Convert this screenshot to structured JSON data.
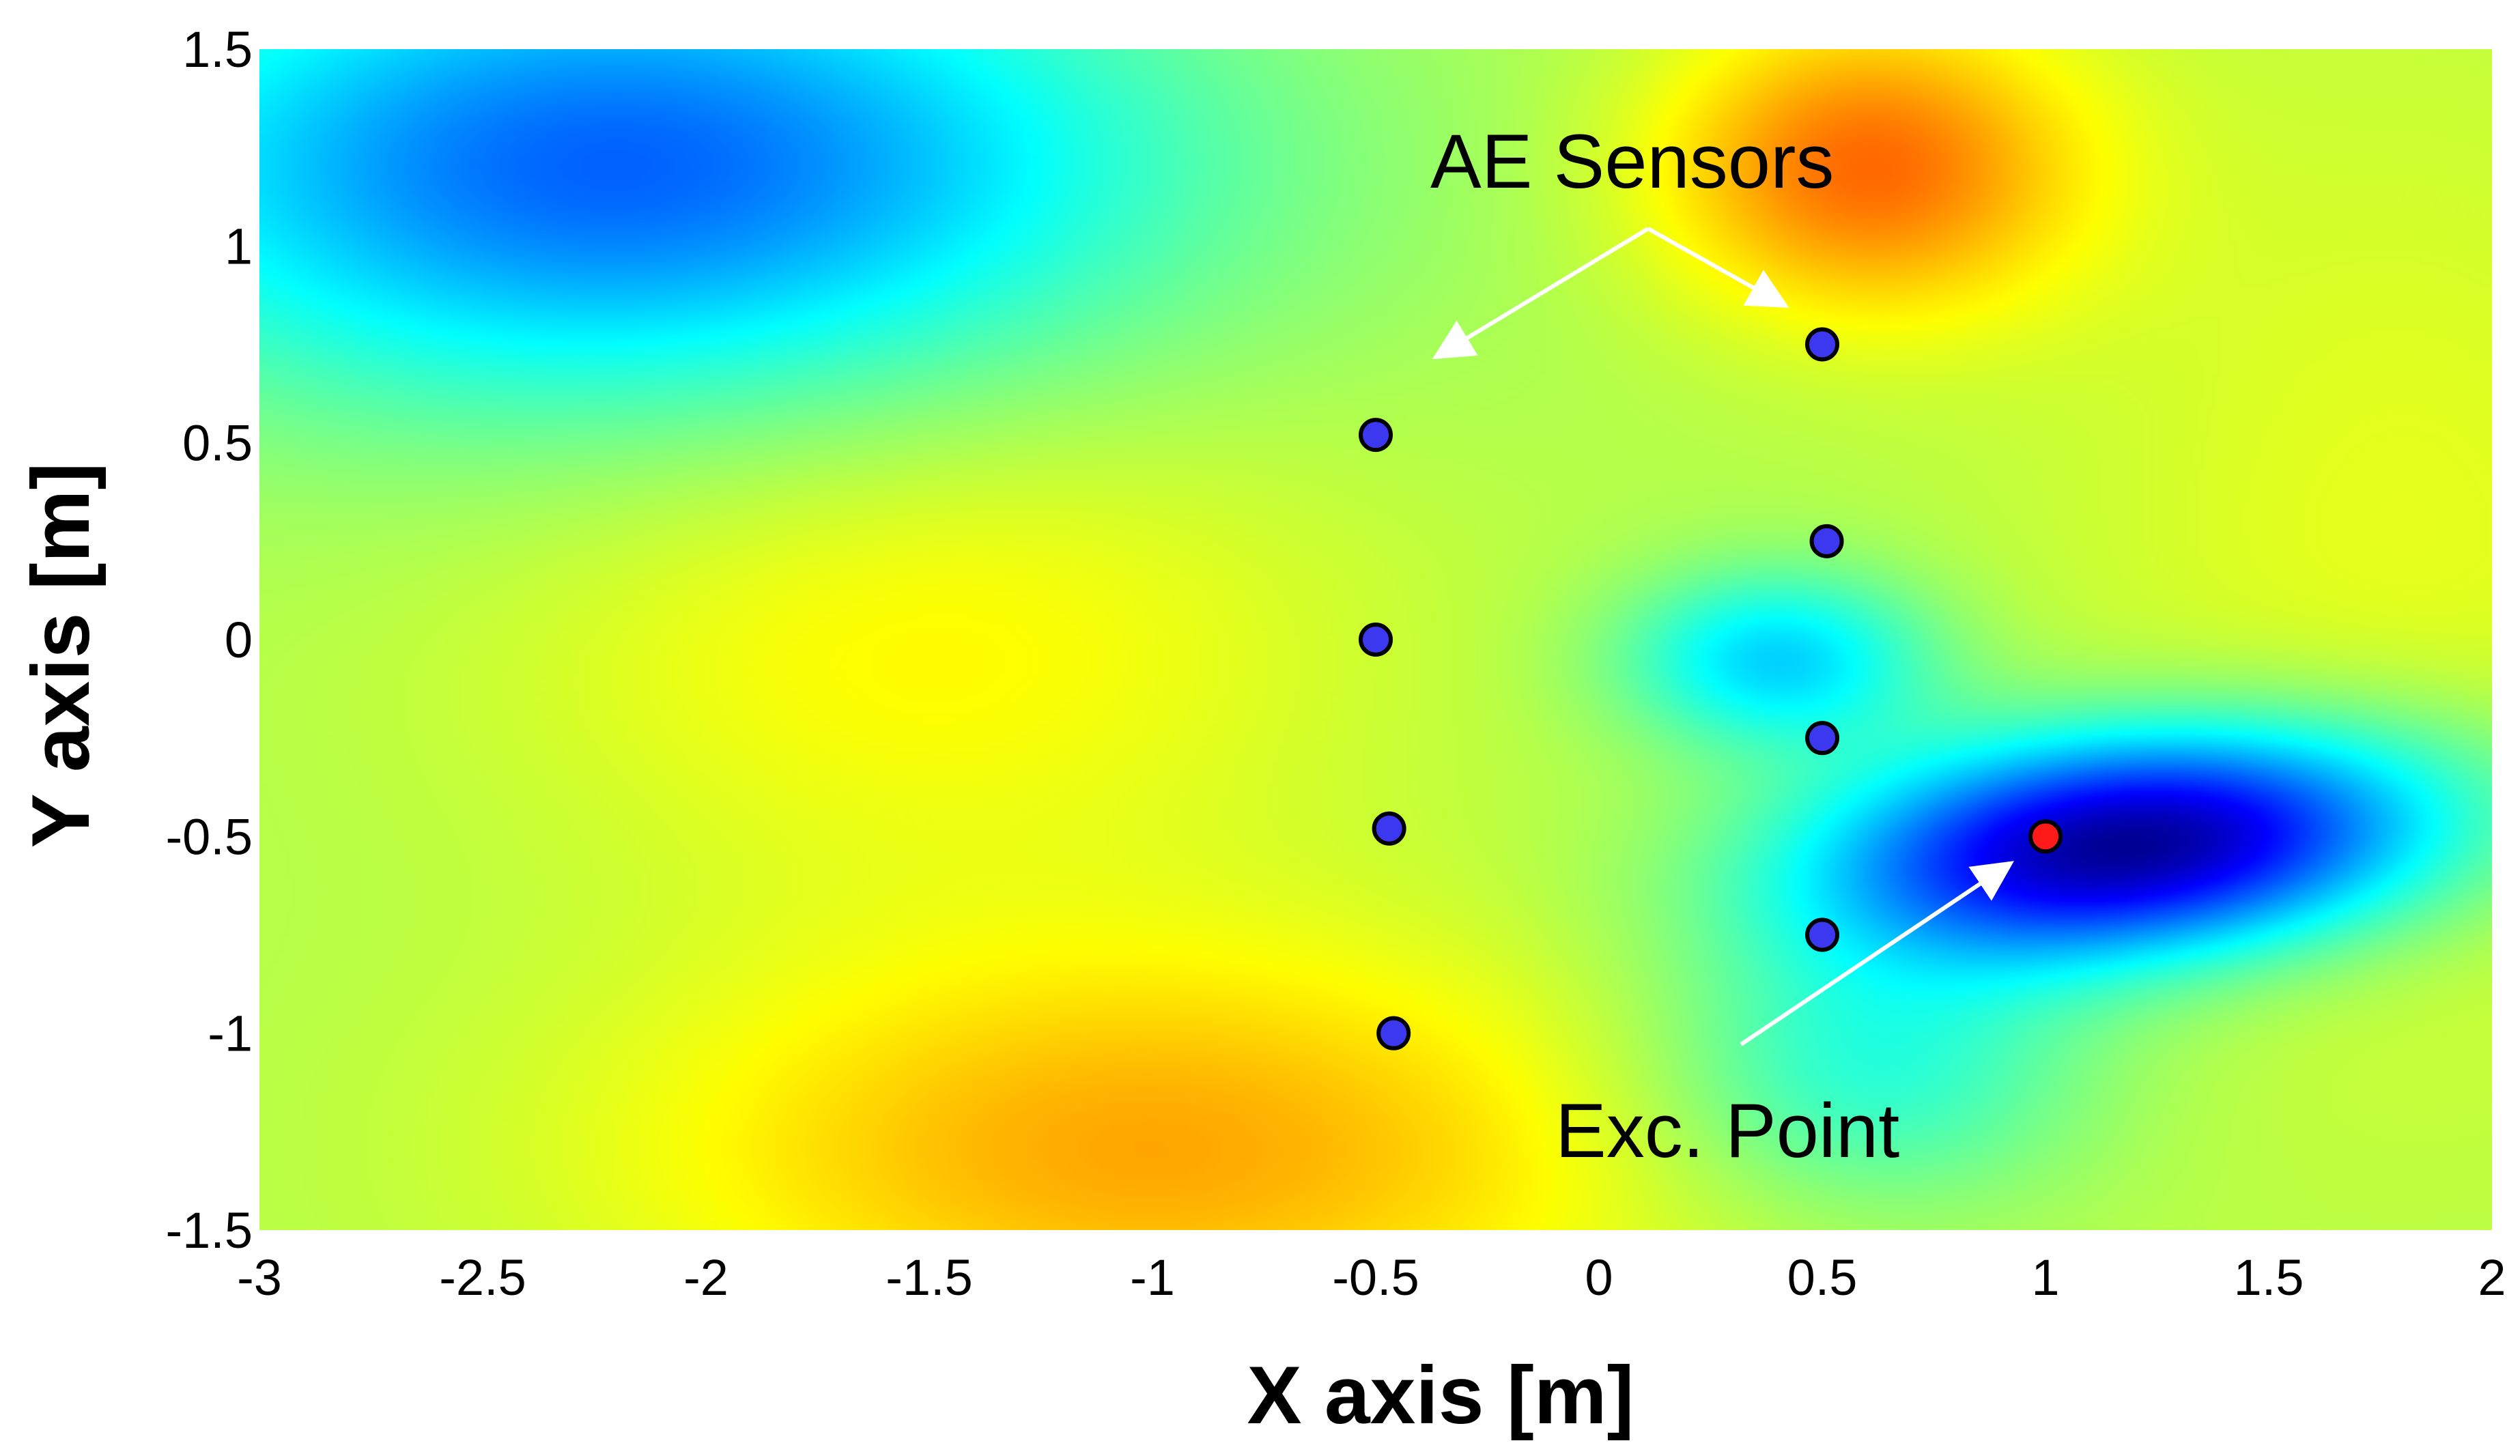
{
  "chart_data": {
    "type": "heatmap",
    "title": "",
    "xlabel": "X axis [m]",
    "ylabel": "Y axis [m]",
    "xlim": [
      -3,
      2
    ],
    "ylim": [
      -1.5,
      1.5
    ],
    "xticks": [
      -3,
      -2.5,
      -2,
      -1.5,
      -1,
      -0.5,
      0,
      0.5,
      1,
      1.5,
      2
    ],
    "xtick_labels": [
      "-3",
      "-2.5",
      "-2",
      "-1.5",
      "-1",
      "-0.5",
      "0",
      "0.5",
      "1",
      "1.5",
      "2"
    ],
    "yticks": [
      1.5,
      1,
      0.5,
      0,
      -0.5,
      -1,
      -1.5
    ],
    "ytick_labels": [
      "1.5",
      "1",
      "0.5",
      "0",
      "-0.5",
      "-1",
      "-1.5"
    ],
    "grid": false,
    "colormap": "jet",
    "sensors": [
      {
        "x": -0.5,
        "y": 0.52
      },
      {
        "x": -0.5,
        "y": 0.0
      },
      {
        "x": -0.47,
        "y": -0.48
      },
      {
        "x": -0.46,
        "y": -1.0
      },
      {
        "x": 0.5,
        "y": 0.75
      },
      {
        "x": 0.51,
        "y": 0.25
      },
      {
        "x": 0.5,
        "y": -0.25
      },
      {
        "x": 0.5,
        "y": -0.75
      }
    ],
    "excitation_point": {
      "x": 1.0,
      "y": -0.5
    },
    "annotations": [
      {
        "text": "AE Sensors",
        "x": 0.15,
        "y": 1.22
      },
      {
        "text": "Exc. Point",
        "x": 0.37,
        "y": -1.27
      }
    ],
    "colors": {
      "sensor_fill": "#3b38f0",
      "excitation_fill": "#ff1a1a",
      "arrow": "#ffffff",
      "annotation_text": "#000000"
    }
  }
}
